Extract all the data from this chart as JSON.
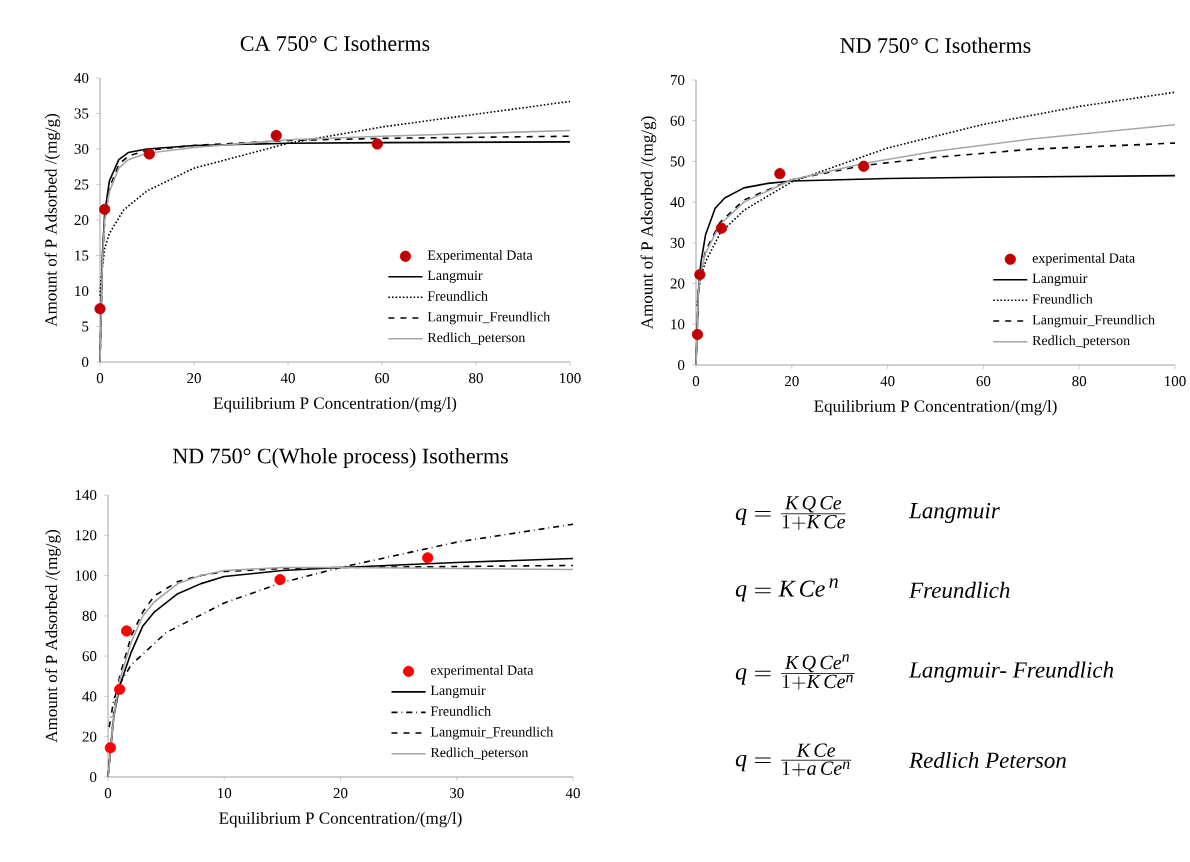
{
  "chart_data": [
    {
      "type": "line",
      "title": "CA 750° C Isotherms",
      "xlabel": "Equilibrium P Concentration/(mg/l)",
      "ylabel": "Amount of P Adsorbed /(mg/g)",
      "xlim": [
        0,
        100
      ],
      "ylim": [
        0,
        40
      ],
      "xticks": [
        0,
        20,
        40,
        60,
        80,
        100
      ],
      "yticks": [
        0,
        5,
        10,
        15,
        20,
        25,
        30,
        35,
        40
      ],
      "legend": "bottom right",
      "series": [
        {
          "name": "Experimental Data",
          "type": "scatter",
          "color": "#c00000",
          "x": [
            0,
            1,
            10.5,
            37.5,
            59
          ],
          "values": [
            7.5,
            21.5,
            29.3,
            31.9,
            30.7
          ]
        },
        {
          "name": "Langmuir",
          "type": "line",
          "line_style": "solid",
          "color": "#000000",
          "x": [
            0,
            0.5,
            1,
            2,
            4,
            6,
            10,
            20,
            40,
            60,
            100
          ],
          "values": [
            0,
            15,
            21,
            25.5,
            28.5,
            29.5,
            30,
            30.5,
            30.8,
            30.9,
            31
          ]
        },
        {
          "name": "Freundlich",
          "type": "line",
          "line_style": "dotted",
          "color": "#000000",
          "x": [
            0.05,
            0.1,
            0.3,
            1,
            2,
            5,
            10,
            20,
            40,
            60,
            80,
            100
          ],
          "values": [
            9.3,
            10.6,
            12.2,
            16,
            18.1,
            21.4,
            24.1,
            27.3,
            30.8,
            33.1,
            34.9,
            36.7
          ]
        },
        {
          "name": "Langmuir_Freundlich",
          "type": "line",
          "line_style": "dashed",
          "color": "#000000",
          "x": [
            0,
            0.5,
            1,
            2,
            4,
            6,
            10,
            20,
            40,
            60,
            100
          ],
          "values": [
            0,
            14,
            20,
            24.5,
            27.8,
            29,
            29.8,
            30.5,
            31.2,
            31.5,
            31.8
          ]
        },
        {
          "name": "Redlich_peterson",
          "type": "line",
          "line_style": "solid",
          "color": "#a6a6a6",
          "x": [
            0,
            0.5,
            1,
            2,
            4,
            6,
            10,
            20,
            40,
            60,
            100
          ],
          "values": [
            0,
            14,
            20,
            24,
            27.3,
            28.5,
            29.4,
            30.2,
            31.3,
            31.8,
            32.6
          ]
        }
      ]
    },
    {
      "type": "line",
      "title": "ND 750° C Isotherms",
      "xlabel": "Equilibrium P Concentration/(mg/l)",
      "ylabel": "Amount of P Adsorbed /(mg/g)",
      "xlim": [
        0,
        100
      ],
      "ylim": [
        0,
        70
      ],
      "xticks": [
        0,
        20,
        40,
        60,
        80,
        100
      ],
      "yticks": [
        0,
        10,
        20,
        30,
        40,
        50,
        60,
        70
      ],
      "legend": "bottom right",
      "series": [
        {
          "name": "experimental Data",
          "type": "scatter",
          "color": "#c00000",
          "x": [
            0.3,
            0.8,
            5.3,
            17.5,
            35
          ],
          "values": [
            7.5,
            22.2,
            33.6,
            47,
            48.8
          ]
        },
        {
          "name": "Langmuir",
          "type": "line",
          "line_style": "solid",
          "color": "#000000",
          "x": [
            0,
            0.5,
            1,
            2,
            4,
            6,
            10,
            15,
            20,
            40,
            60,
            100
          ],
          "values": [
            0,
            18,
            25,
            32,
            38.5,
            41,
            43.5,
            44.6,
            45.2,
            45.8,
            46.1,
            46.5
          ]
        },
        {
          "name": "Freundlich",
          "type": "line",
          "line_style": "dotted",
          "color": "#000000",
          "x": [
            0.2,
            0.5,
            1,
            2,
            5,
            10,
            20,
            40,
            60,
            80,
            100
          ],
          "values": [
            14.5,
            18.2,
            21.5,
            25.4,
            32.3,
            38,
            45,
            53.3,
            59.1,
            63.5,
            67
          ]
        },
        {
          "name": "Langmuir_Freundlich",
          "type": "line",
          "line_style": "dashed",
          "color": "#000000",
          "x": [
            0,
            0.5,
            1,
            2,
            5,
            10,
            20,
            35,
            50,
            70,
            100
          ],
          "values": [
            0,
            18,
            23,
            28,
            35,
            40.5,
            45.5,
            49,
            51,
            53,
            54.5
          ]
        },
        {
          "name": "Redlich_peterson",
          "type": "line",
          "line_style": "solid",
          "color": "#a6a6a6",
          "x": [
            0,
            0.5,
            1,
            2,
            5,
            10,
            20,
            35,
            50,
            70,
            100
          ],
          "values": [
            0,
            18,
            23,
            27.5,
            34.5,
            40,
            45.5,
            49.5,
            52.5,
            55.5,
            59
          ]
        }
      ]
    },
    {
      "type": "line",
      "title": "ND 750° C(Whole process) Isotherms",
      "xlabel": "Equilibrium P Concentration/(mg/l)",
      "ylabel": "Amount of P Adsorbed /(mg/g)",
      "xlim": [
        0,
        40
      ],
      "ylim": [
        0,
        140
      ],
      "xticks": [
        0,
        10,
        20,
        30,
        40
      ],
      "yticks": [
        0,
        20,
        40,
        60,
        80,
        100,
        120,
        140
      ],
      "legend": "bottom right",
      "series": [
        {
          "name": "experimental Data",
          "type": "scatter",
          "color": "#ff0000",
          "x": [
            0.2,
            1,
            1.6,
            14.8,
            27.5
          ],
          "values": [
            14.5,
            43.5,
            72.5,
            98,
            108.8
          ]
        },
        {
          "name": "Langmuir",
          "type": "line",
          "line_style": "solid",
          "color": "#000000",
          "x": [
            0,
            0.5,
            1,
            2,
            3,
            4,
            6,
            8,
            10,
            15,
            20,
            30,
            40
          ],
          "values": [
            0,
            30,
            45,
            62,
            75,
            82,
            91,
            96,
            99.5,
            102.5,
            104,
            106.5,
            108.5
          ]
        },
        {
          "name": "Freundlich",
          "type": "line",
          "line_style": "dashdot",
          "color": "#000000",
          "x": [
            0.1,
            0.5,
            1,
            2,
            5,
            10,
            15,
            20,
            30,
            40
          ],
          "values": [
            24.7,
            38.4,
            46.2,
            55.7,
            71.7,
            86.4,
            96.5,
            104,
            116.6,
            125.5
          ]
        },
        {
          "name": "Langmuir_Freundlich",
          "type": "line",
          "line_style": "dashed",
          "color": "#000000",
          "x": [
            0,
            0.5,
            1,
            2,
            3,
            4,
            6,
            8,
            10,
            15,
            20,
            30,
            40
          ],
          "values": [
            0,
            32,
            50,
            70,
            82,
            90,
            97,
            100,
            102,
            103.5,
            104,
            104.5,
            105
          ]
        },
        {
          "name": "Redlich_peterson",
          "type": "line",
          "line_style": "solid",
          "color": "#a6a6a6",
          "x": [
            0,
            0.5,
            1,
            2,
            3,
            4,
            6,
            8,
            10,
            15,
            20,
            30,
            40
          ],
          "values": [
            0,
            30,
            48,
            67,
            80,
            87,
            96,
            100,
            102.5,
            104,
            104,
            103.5,
            103
          ]
        }
      ]
    },
    {
      "type": "other",
      "annotations": [
        "q = \\frac{K\\,Q\\,Ce}{1+K\\,Ce}",
        "Langmuir",
        "q = K\\,Ce^{\\,n}",
        "Freundlich",
        "q = \\frac{K\\,Q\\,Ce^{n}}{1+K\\,Ce^{n}}",
        "Langmuir- Freundlich",
        "q = \\frac{K\\,Ce}{1+a\\,Ce^{n}}",
        "Redlich Peterson"
      ]
    }
  ]
}
